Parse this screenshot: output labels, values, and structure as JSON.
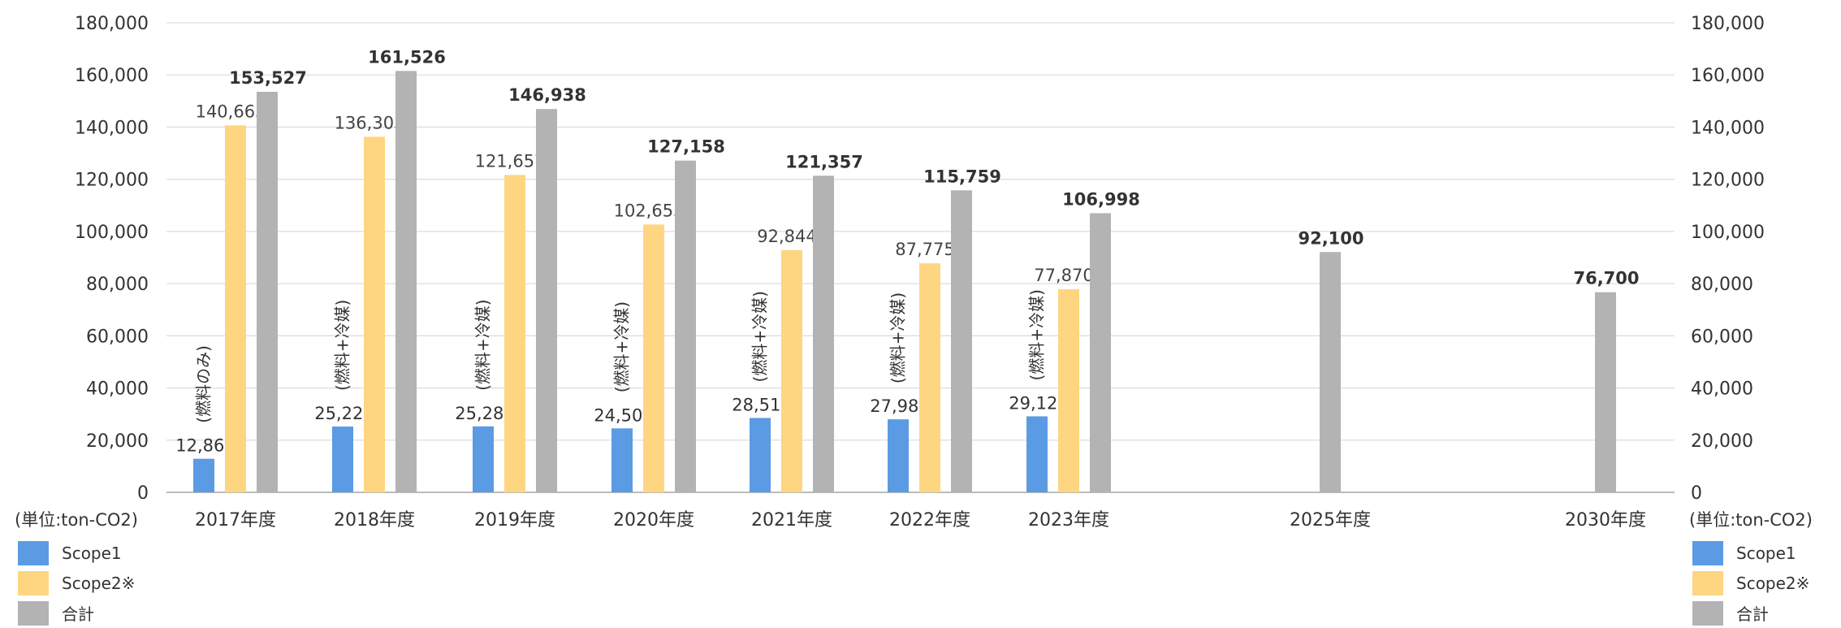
{
  "chart_data": {
    "type": "bar",
    "categories": [
      "2017年度",
      "2018年度",
      "2019年度",
      "2020年度",
      "2021年度",
      "2022年度",
      "2023年度",
      "2025年度",
      "2030年度"
    ],
    "series": [
      {
        "name": "Scope1",
        "values": [
          12864,
          25223,
          25281,
          24505,
          28513,
          27984,
          29128,
          null,
          null
        ]
      },
      {
        "name": "Scope2※",
        "values": [
          140663,
          136303,
          121657,
          102653,
          92844,
          87775,
          77870,
          null,
          null
        ]
      },
      {
        "name": "合計",
        "values": [
          153527,
          161526,
          146938,
          127158,
          121357,
          115759,
          106998,
          92100,
          76700
        ]
      }
    ],
    "scope1_notes": [
      "(燃料のみ)",
      "(燃料+冷媒)",
      "(燃料+冷媒)",
      "(燃料+冷媒)",
      "(燃料+冷媒)",
      "(燃料+冷媒)",
      "(燃料+冷媒)"
    ],
    "ylim": [
      0,
      180000
    ],
    "yticks": [
      0,
      20000,
      40000,
      60000,
      80000,
      100000,
      120000,
      140000,
      160000,
      180000
    ],
    "unit_label": "(単位:ton-CO2)",
    "grid": true,
    "legend_position": "bottom-left and bottom-right",
    "colors": {
      "Scope1": "#5b9be3",
      "Scope2※": "#fed681",
      "合計": "#b3b3b3",
      "grid": "#dedede",
      "axis": "#bbbbbb"
    }
  }
}
